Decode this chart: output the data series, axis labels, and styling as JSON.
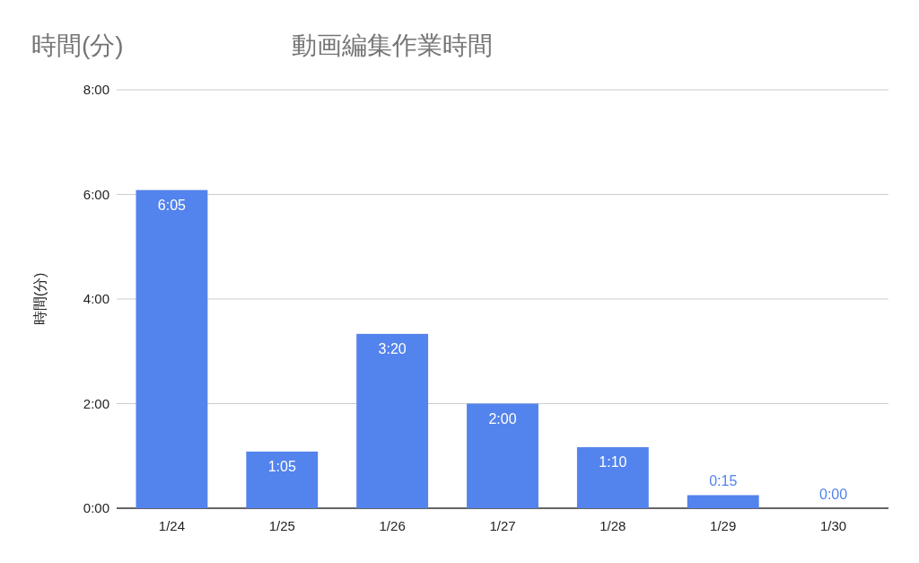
{
  "chart_data": {
    "type": "bar",
    "title": "動画編集作業時間",
    "annotations": [
      "時間(分)"
    ],
    "ylabel": "時間(分)",
    "categories": [
      "1/24",
      "1/25",
      "1/26",
      "1/27",
      "1/28",
      "1/29",
      "1/30"
    ],
    "values": [
      6.0833,
      1.0833,
      3.3333,
      2,
      1.1667,
      0.25,
      0
    ],
    "value_labels": [
      "6:05",
      "1:05",
      "3:20",
      "2:00",
      "1:10",
      "0:15",
      "0:00"
    ],
    "color": "#5383ec",
    "ylim": [
      0,
      8
    ],
    "yticks": [
      {
        "value": 0,
        "label": "0:00"
      },
      {
        "value": 2,
        "label": "2:00"
      },
      {
        "value": 4,
        "label": "4:00"
      },
      {
        "value": 6,
        "label": "6:00"
      },
      {
        "value": 8,
        "label": "8:00"
      }
    ],
    "grid": "y"
  }
}
